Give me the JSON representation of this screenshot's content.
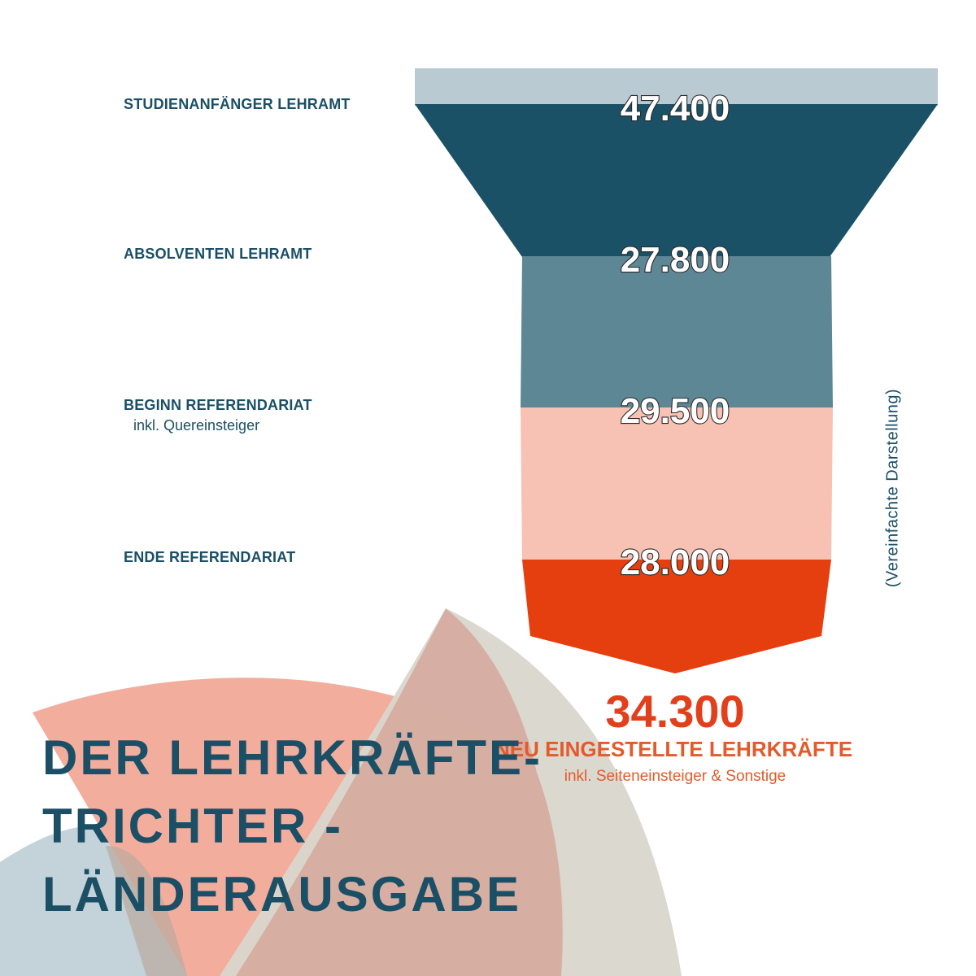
{
  "headline": {
    "line1": "DER LEHRKRÄFTE-",
    "line2": "TRICHTER -",
    "line3": "LÄNDERAUSGABE"
  },
  "note": "(Vereinfachte Darstellung)",
  "colors": {
    "stage1": "#1b5166",
    "stage1_rim": "#b9cad2",
    "stage2": "#5e8796",
    "stage3": "#f7c1b3",
    "stage4": "#e53e0f",
    "text": "#1b4f66",
    "accent": "#e2401c"
  },
  "chart_data": {
    "type": "funnel",
    "stages": [
      {
        "label": "STUDIENANFÄNGER LEHRAMT",
        "sub": "",
        "value": 47400,
        "display": "47.400"
      },
      {
        "label": "ABSOLVENTEN LEHRAMT",
        "sub": "",
        "value": 27800,
        "display": "27.800"
      },
      {
        "label": "BEGINN REFERENDARIAT",
        "sub": "inkl. Quereinsteiger",
        "value": 29500,
        "display": "29.500"
      },
      {
        "label": "ENDE REFERENDARIAT",
        "sub": "",
        "value": 28000,
        "display": "28.000"
      }
    ],
    "result": {
      "value": 34300,
      "display": "34.300",
      "label": "NEU EINGESTELLTE LEHRKRÄFTE",
      "sub": "inkl. Seiteneinsteiger & Sonstige"
    }
  }
}
